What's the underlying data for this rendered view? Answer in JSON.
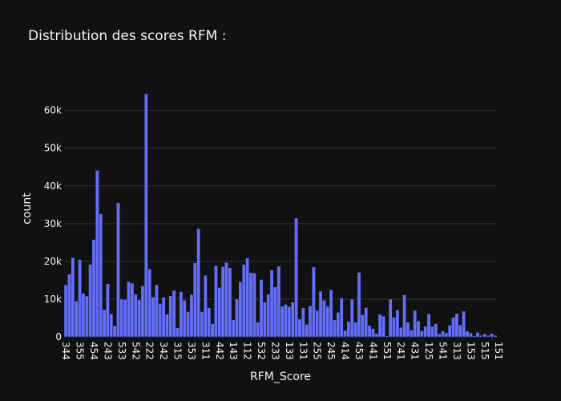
{
  "chart_data": {
    "type": "bar",
    "title": "Distribution des scores RFM :",
    "xlabel": "RFM_Score",
    "ylabel": "count",
    "ylim": [
      0,
      68000
    ],
    "yticks": [
      0,
      10000,
      20000,
      30000,
      40000,
      50000,
      60000
    ],
    "ytick_labels": [
      "0",
      "10k",
      "20k",
      "30k",
      "40k",
      "50k",
      "60k"
    ],
    "xtick_labels": [
      "344",
      "355",
      "454",
      "243",
      "533",
      "542",
      "222",
      "342",
      "315",
      "353",
      "311",
      "442",
      "143",
      "112",
      "532",
      "233",
      "133",
      "131",
      "255",
      "245",
      "414",
      "453",
      "441",
      "551",
      "241",
      "431",
      "125",
      "541",
      "313",
      "153",
      "515",
      "151"
    ],
    "bar_color": "#636efa",
    "background": "#111111",
    "grid": true,
    "values": [
      13800,
      16600,
      21000,
      9500,
      20500,
      11500,
      10800,
      19200,
      25800,
      44100,
      32600,
      7200,
      14100,
      6100,
      2900,
      35500,
      10000,
      9900,
      14600,
      14200,
      11300,
      9800,
      13500,
      64400,
      18000,
      10600,
      13800,
      8800,
      10500,
      6000,
      10900,
      12300,
      2400,
      12000,
      9700,
      6700,
      11200,
      19600,
      28700,
      6700,
      16300,
      7700,
      3500,
      18900,
      13100,
      18600,
      19700,
      18300,
      4500,
      10000,
      14600,
      19200,
      20900,
      17000,
      16900,
      3900,
      15200,
      9200,
      11300,
      17700,
      13200,
      18700,
      8100,
      8600,
      8000,
      9200,
      31500,
      4700,
      7700,
      3300,
      8200,
      18500,
      7000,
      12100,
      9700,
      8100,
      12500,
      4500,
      6500,
      10300,
      1700,
      4100,
      10000,
      3900,
      17100,
      5800,
      7800,
      3000,
      2200,
      900,
      6000,
      5500,
      300,
      10000,
      5200,
      7100,
      2500,
      11100,
      3900,
      1800,
      7000,
      4200,
      1600,
      2800,
      6100,
      2800,
      3500,
      800,
      1500,
      1100,
      3100,
      5200,
      6200,
      3200,
      6800,
      1500,
      1000,
      300,
      1200,
      400,
      800,
      400,
      900,
      400
    ]
  }
}
